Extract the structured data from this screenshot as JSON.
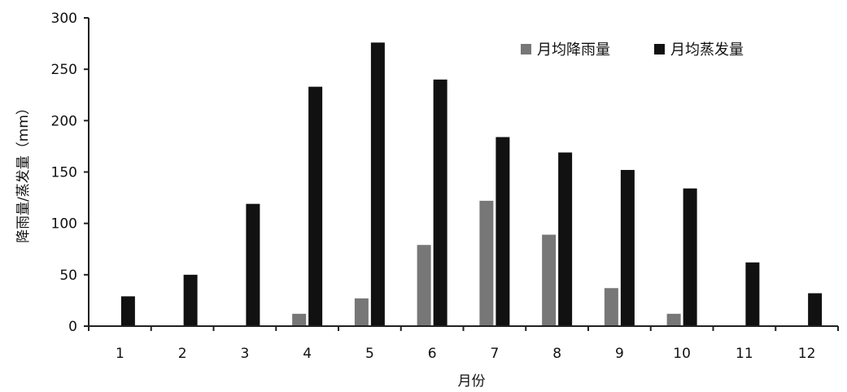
{
  "chart_data": {
    "type": "bar",
    "categories": [
      "1",
      "2",
      "3",
      "4",
      "5",
      "6",
      "7",
      "8",
      "9",
      "10",
      "11",
      "12"
    ],
    "series": [
      {
        "name": "月均降雨量",
        "color": "#777777",
        "values": [
          0,
          0,
          0,
          12,
          27,
          79,
          122,
          89,
          37,
          12,
          0,
          0
        ]
      },
      {
        "name": "月均蒸发量",
        "color": "#111111",
        "values": [
          29,
          50,
          119,
          233,
          276,
          240,
          184,
          169,
          152,
          134,
          62,
          32
        ]
      }
    ],
    "xlabel": "月份",
    "ylabel": "降雨量/蒸发量（mm）",
    "ylim": [
      0,
      300
    ],
    "yticks": [
      0,
      50,
      100,
      150,
      200,
      250,
      300
    ],
    "grid": false,
    "legend_position": "top-right"
  }
}
